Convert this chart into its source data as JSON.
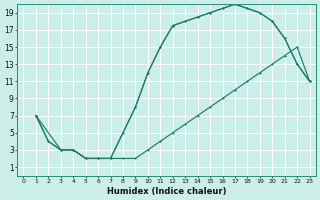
{
  "xlabel": "Humidex (Indice chaleur)",
  "bg_color": "#cceee8",
  "grid_color": "#ffffff",
  "line_color": "#1e7b6e",
  "xlim": [
    -0.5,
    23.5
  ],
  "ylim": [
    0,
    20
  ],
  "xticks": [
    0,
    1,
    2,
    3,
    4,
    5,
    6,
    7,
    8,
    9,
    10,
    11,
    12,
    13,
    14,
    15,
    16,
    17,
    18,
    19,
    20,
    21,
    22,
    23
  ],
  "yticks": [
    1,
    3,
    5,
    7,
    9,
    11,
    13,
    15,
    17,
    19
  ],
  "curve1_x": [
    1,
    2,
    3,
    4,
    5,
    6,
    7,
    8,
    9,
    10,
    11,
    12,
    13,
    14,
    15,
    16,
    17,
    18,
    19,
    20,
    21,
    22,
    23
  ],
  "curve1_y": [
    7,
    4,
    3,
    3,
    2,
    2,
    2,
    5,
    8,
    12,
    15,
    17.5,
    18,
    18.5,
    19,
    19.5,
    20,
    19.5,
    19,
    18,
    16,
    13,
    11
  ],
  "curve2_x": [
    1,
    2,
    3,
    4,
    5,
    6,
    7,
    8,
    9,
    10,
    11,
    12,
    13,
    14,
    15,
    16,
    17,
    18,
    19,
    20,
    21,
    22,
    23
  ],
  "curve2_y": [
    7,
    4,
    3,
    3,
    2,
    2,
    2,
    2,
    2,
    3,
    4,
    5,
    6,
    7,
    8,
    9,
    10,
    11,
    12,
    13,
    14,
    15,
    11
  ],
  "curve3_x": [
    1,
    3,
    4,
    5,
    6,
    7,
    9,
    10,
    11,
    12,
    13,
    14,
    15,
    16,
    17,
    18,
    19,
    20,
    21,
    22,
    23
  ],
  "curve3_y": [
    7,
    3,
    3,
    2,
    2,
    2,
    8,
    12,
    15,
    17.5,
    18,
    18.5,
    19,
    19.5,
    20,
    19.5,
    19,
    18,
    16,
    13,
    11
  ]
}
